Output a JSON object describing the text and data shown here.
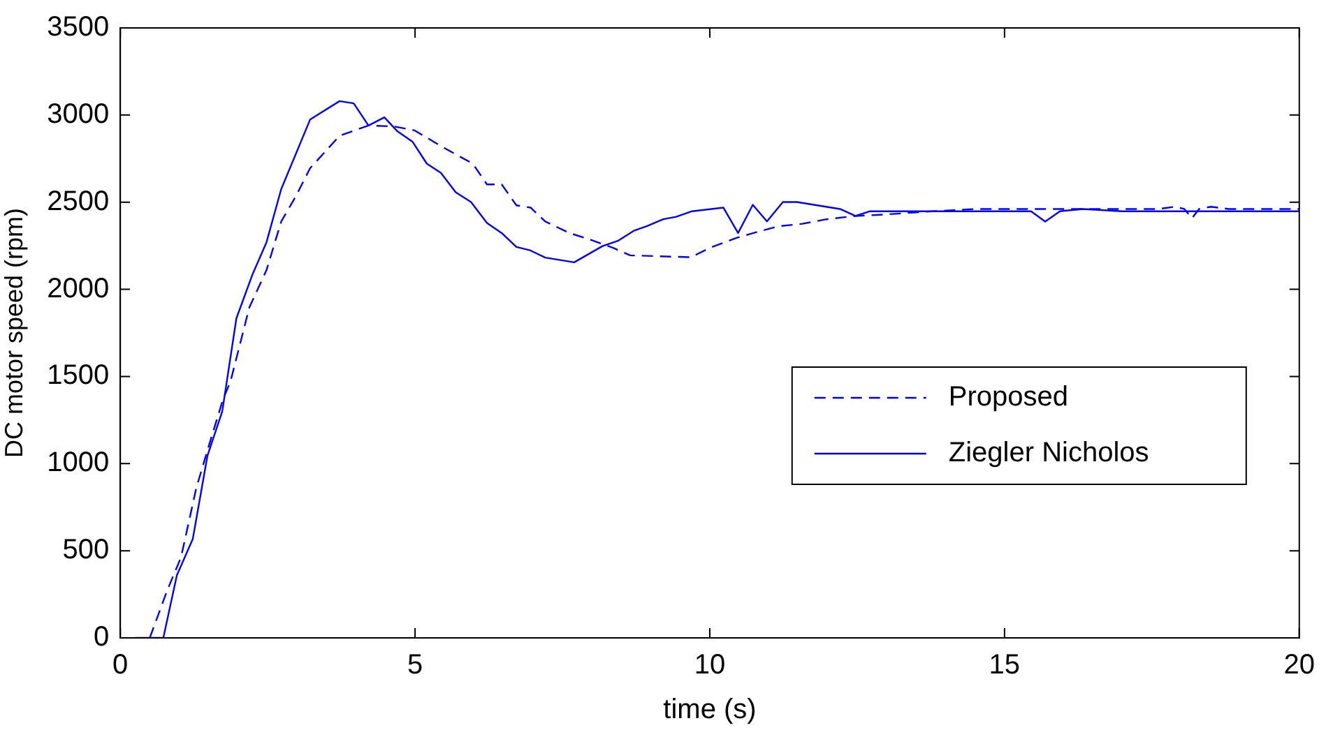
{
  "chart_data": {
    "type": "line",
    "xlabel": "time (s)",
    "ylabel": "DC motor speed (rpm)",
    "xlim": [
      0,
      20
    ],
    "ylim": [
      0,
      3500
    ],
    "xticks": [
      0,
      5,
      10,
      15,
      20
    ],
    "yticks": [
      0,
      500,
      1000,
      1500,
      2000,
      2500,
      3000,
      3500
    ],
    "grid": false,
    "legend": "right",
    "marker": "none",
    "series": [
      {
        "name": "Proposed",
        "color": "#0000ff",
        "line_style": "dashed",
        "x": [
          0.5,
          0.8,
          1.03,
          1.29,
          1.5,
          1.74,
          1.87,
          2.19,
          2.48,
          2.73,
          2.98,
          3.22,
          3.72,
          4.21,
          4.66,
          4.99,
          5.48,
          5.98,
          6.22,
          6.47,
          6.72,
          6.96,
          7.21,
          7.62,
          7.95,
          8.36,
          8.65,
          9.68,
          10.0,
          10.46,
          10.74,
          11.16,
          11.57,
          11.98,
          12.47,
          12.96,
          13.79,
          14.5,
          17.6,
          17.9,
          18.05,
          18.18,
          18.3,
          18.5,
          18.8,
          20
        ],
        "values": [
          0,
          276,
          462,
          861,
          1100,
          1366,
          1472,
          1897,
          2110,
          2389,
          2535,
          2695,
          2881,
          2940,
          2934,
          2912,
          2814,
          2721,
          2602,
          2602,
          2482,
          2469,
          2389,
          2323,
          2288,
          2238,
          2195,
          2184,
          2238,
          2296,
          2323,
          2362,
          2376,
          2402,
          2421,
          2429,
          2448,
          2461,
          2461,
          2474,
          2461,
          2408,
          2461,
          2474,
          2461,
          2461
        ]
      },
      {
        "name": "Ziegler Nicholos",
        "color": "#0000ff",
        "line_style": "solid",
        "x": [
          0.25,
          0.73,
          0.96,
          1.23,
          1.48,
          1.73,
          1.97,
          2.24,
          2.48,
          2.73,
          3.22,
          3.72,
          3.96,
          4.21,
          4.48,
          4.7,
          4.96,
          5.2,
          5.44,
          5.69,
          5.95,
          6.22,
          6.47,
          6.72,
          6.95,
          7.21,
          7.7,
          8.18,
          8.44,
          8.71,
          8.93,
          9.21,
          9.43,
          9.7,
          10.23,
          10.48,
          10.73,
          10.97,
          11.24,
          11.48,
          12.21,
          12.47,
          12.72,
          15.45,
          15.69,
          15.94,
          16.33,
          17,
          20
        ],
        "values": [
          0,
          0,
          359,
          568,
          1047,
          1300,
          1834,
          2083,
          2270,
          2575,
          2974,
          3080,
          3067,
          2940,
          2987,
          2907,
          2846,
          2721,
          2668,
          2557,
          2501,
          2381,
          2323,
          2243,
          2224,
          2182,
          2155,
          2248,
          2278,
          2336,
          2362,
          2402,
          2416,
          2448,
          2469,
          2323,
          2485,
          2390,
          2501,
          2501,
          2461,
          2421,
          2448,
          2448,
          2389,
          2448,
          2461,
          2448,
          2448
        ]
      }
    ]
  }
}
